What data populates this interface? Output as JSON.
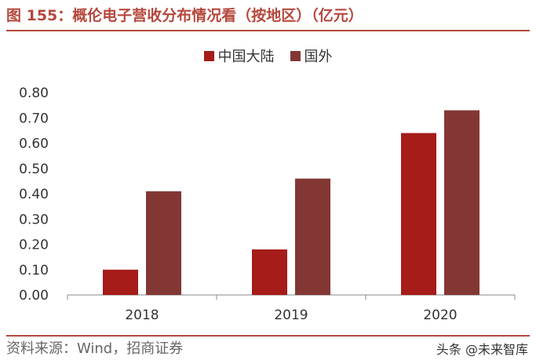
{
  "header": {
    "title": "图 155：概伦电子营收分布情况看（按地区）（亿元）"
  },
  "colors": {
    "accent": "#b5483c",
    "series_china": "#a51c19",
    "series_overseas": "#833734"
  },
  "chart_data": {
    "type": "bar",
    "title": "",
    "xlabel": "",
    "ylabel": "",
    "categories": [
      "2018",
      "2019",
      "2020"
    ],
    "series": [
      {
        "name": "中国大陆",
        "values": [
          0.1,
          0.18,
          0.64
        ]
      },
      {
        "name": "国外",
        "values": [
          0.41,
          0.46,
          0.73
        ]
      }
    ],
    "ylim": [
      0,
      0.8
    ],
    "yticks": [
      "0.00",
      "0.10",
      "0.20",
      "0.30",
      "0.40",
      "0.50",
      "0.60",
      "0.70",
      "0.80"
    ],
    "grid": false,
    "legend": "top-center"
  },
  "footer": {
    "source": "资料来源：Wind，招商证券",
    "watermark": "头条 @未来智库"
  }
}
